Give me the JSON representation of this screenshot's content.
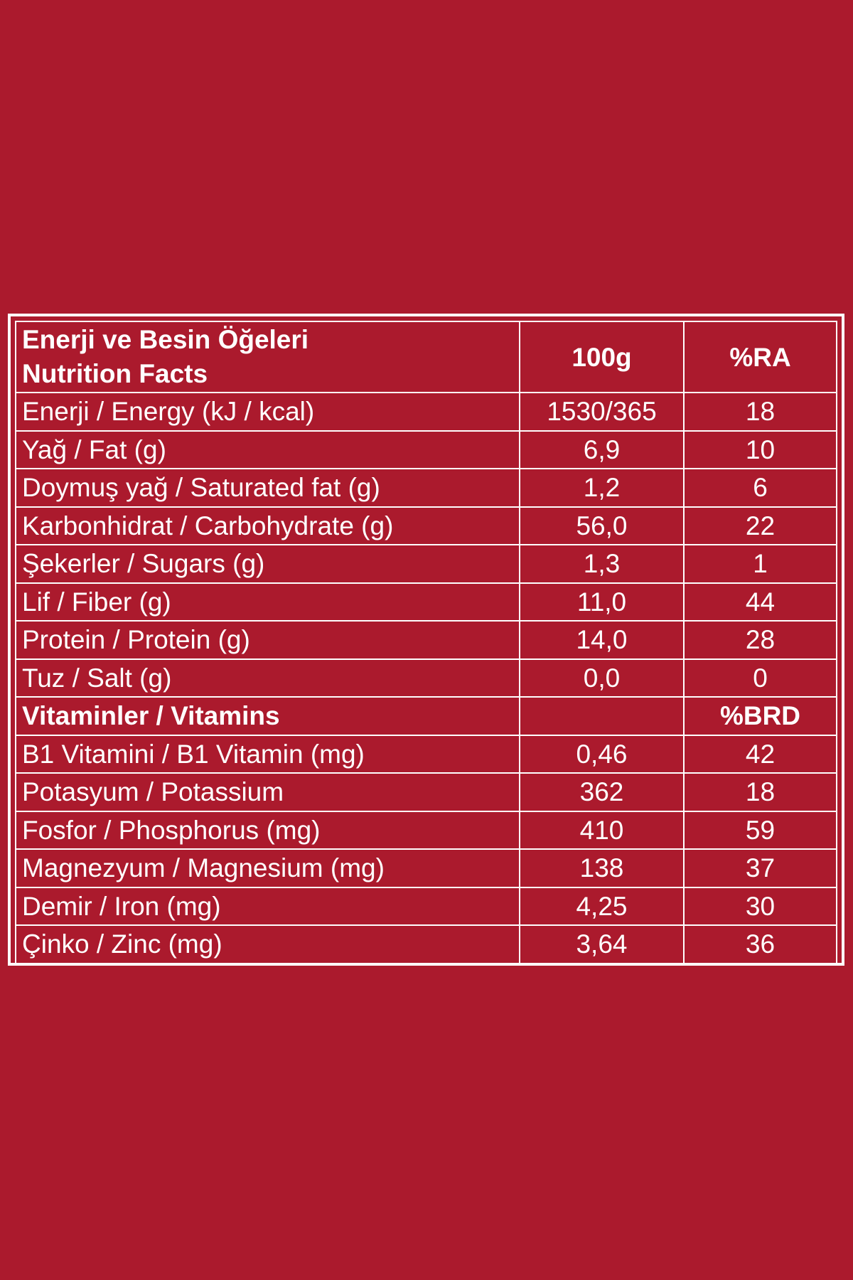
{
  "table": {
    "header": {
      "title_tr": "Enerji ve Besin Öğeleri",
      "title_en": "Nutrition Facts",
      "col_amount": "100g",
      "col_ra": "%RA"
    },
    "rows": [
      {
        "label": "Enerji / Energy (kJ / kcal)",
        "amount": "1530/365",
        "ra": "18"
      },
      {
        "label": "Yağ / Fat (g)",
        "amount": "6,9",
        "ra": "10"
      },
      {
        "label": "Doymuş yağ / Saturated fat (g)",
        "amount": "1,2",
        "ra": "6"
      },
      {
        "label": "Karbonhidrat / Carbohydrate (g)",
        "amount": "56,0",
        "ra": "22"
      },
      {
        "label": "Şekerler / Sugars (g)",
        "amount": "1,3",
        "ra": "1"
      },
      {
        "label": "Lif / Fiber (g)",
        "amount": "11,0",
        "ra": "44"
      },
      {
        "label": "Protein / Protein (g)",
        "amount": "14,0",
        "ra": "28"
      },
      {
        "label": "Tuz / Salt (g)",
        "amount": "0,0",
        "ra": "0"
      }
    ],
    "vitamins_header": {
      "label": "Vitaminler / Vitamins",
      "amount": "",
      "ra": "%BRD"
    },
    "vitamin_rows": [
      {
        "label": "B1 Vitamini / B1 Vitamin (mg)",
        "amount": "0,46",
        "ra": "42"
      },
      {
        "label": "Potasyum / Potassium",
        "amount": "362",
        "ra": "18"
      },
      {
        "label": "Fosfor / Phosphorus (mg)",
        "amount": "410",
        "ra": "59"
      },
      {
        "label": "Magnezyum / Magnesium (mg)",
        "amount": "138",
        "ra": "37"
      },
      {
        "label": "Demir / Iron (mg)",
        "amount": "4,25",
        "ra": "30"
      },
      {
        "label": "Çinko / Zinc (mg)",
        "amount": "3,64",
        "ra": "36"
      }
    ]
  },
  "colors": {
    "background": "#ab1a2d",
    "foreground": "#ffffff"
  }
}
